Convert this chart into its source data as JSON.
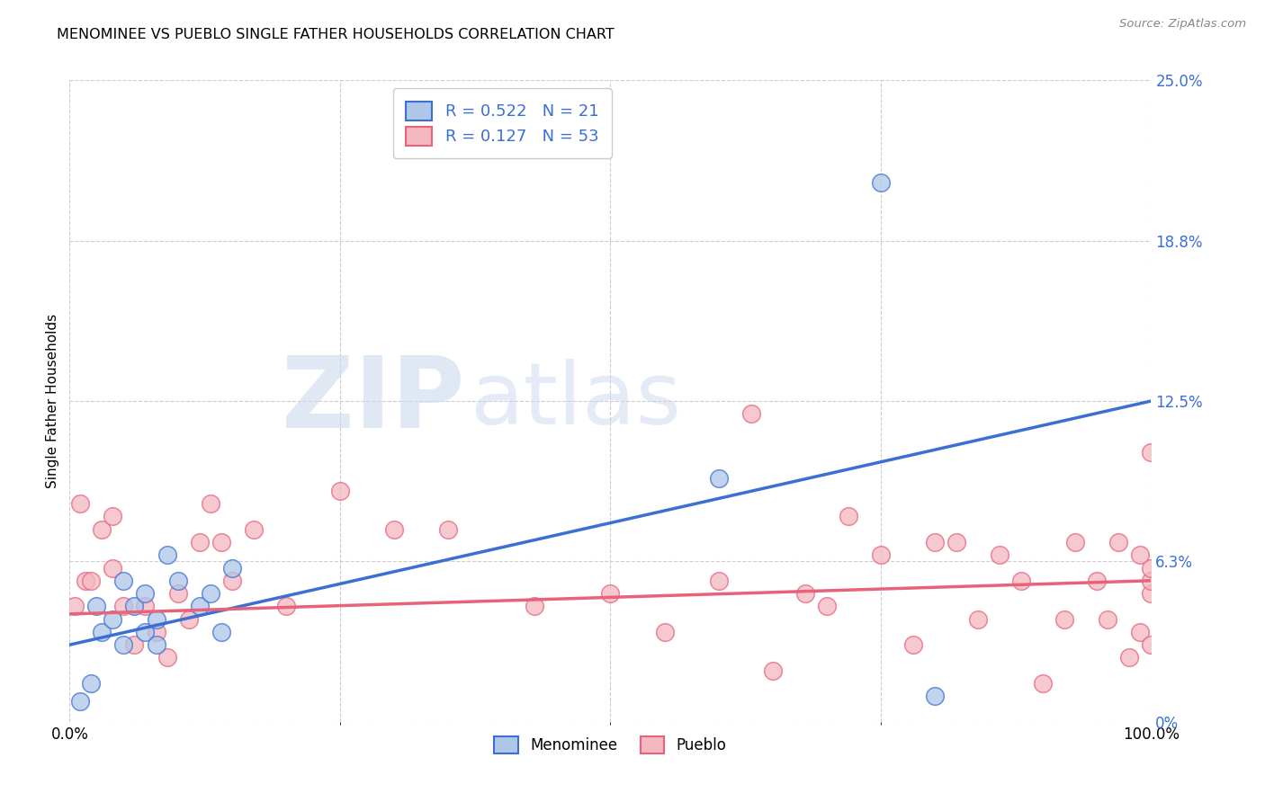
{
  "title": "MENOMINEE VS PUEBLO SINGLE FATHER HOUSEHOLDS CORRELATION CHART",
  "source": "Source: ZipAtlas.com",
  "ylabel": "Single Father Households",
  "xlim": [
    0,
    100
  ],
  "ylim": [
    0,
    25
  ],
  "ytick_values": [
    0,
    6.25,
    12.5,
    18.75,
    25.0
  ],
  "ytick_labels": [
    "0%",
    "6.3%",
    "12.5%",
    "18.8%",
    "25.0%"
  ],
  "color_menominee": "#aec6e8",
  "color_pueblo": "#f4b8c1",
  "color_line_menominee": "#3b6fd4",
  "color_line_pueblo": "#e8637a",
  "legend_r1": "0.522",
  "legend_n1": "21",
  "legend_r2": "0.127",
  "legend_n2": "53",
  "menominee_x": [
    1,
    2,
    2.5,
    3,
    4,
    5,
    5,
    6,
    7,
    7,
    8,
    8,
    9,
    10,
    12,
    13,
    14,
    15,
    60,
    75,
    80
  ],
  "menominee_y": [
    0.8,
    1.5,
    4.5,
    3.5,
    4.0,
    5.5,
    3.0,
    4.5,
    3.5,
    5.0,
    3.0,
    4.0,
    6.5,
    5.5,
    4.5,
    5.0,
    3.5,
    6.0,
    9.5,
    21.0,
    1.0
  ],
  "pueblo_x": [
    0.5,
    1,
    1.5,
    2,
    3,
    4,
    4,
    5,
    6,
    7,
    8,
    9,
    10,
    11,
    12,
    13,
    14,
    15,
    17,
    20,
    25,
    30,
    35,
    43,
    50,
    55,
    60,
    63,
    65,
    68,
    70,
    72,
    75,
    78,
    80,
    82,
    84,
    86,
    88,
    90,
    92,
    93,
    95,
    96,
    97,
    98,
    99,
    99,
    100,
    100,
    100,
    100,
    100
  ],
  "pueblo_y": [
    4.5,
    8.5,
    5.5,
    5.5,
    7.5,
    6.0,
    8.0,
    4.5,
    3.0,
    4.5,
    3.5,
    2.5,
    5.0,
    4.0,
    7.0,
    8.5,
    7.0,
    5.5,
    7.5,
    4.5,
    9.0,
    7.5,
    7.5,
    4.5,
    5.0,
    3.5,
    5.5,
    12.0,
    2.0,
    5.0,
    4.5,
    8.0,
    6.5,
    3.0,
    7.0,
    7.0,
    4.0,
    6.5,
    5.5,
    1.5,
    4.0,
    7.0,
    5.5,
    4.0,
    7.0,
    2.5,
    3.5,
    6.5,
    5.0,
    3.0,
    5.5,
    6.0,
    10.5
  ]
}
